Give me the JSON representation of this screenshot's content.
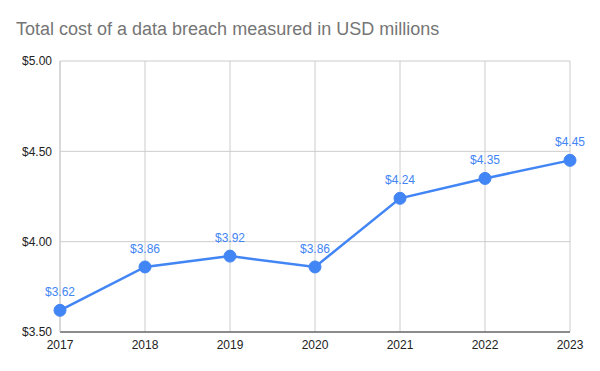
{
  "chart_data": {
    "type": "line",
    "title": "Total cost of a data breach measured in USD millions",
    "categories": [
      "2017",
      "2018",
      "2019",
      "2020",
      "2021",
      "2022",
      "2023"
    ],
    "values": [
      3.62,
      3.86,
      3.92,
      3.86,
      4.24,
      4.35,
      4.45
    ],
    "value_labels": [
      "$3.62",
      "$3.86",
      "$3.92",
      "$3.86",
      "$4.24",
      "$4.35",
      "$4.45"
    ],
    "color": "#4285f4",
    "ylim": [
      3.5,
      5.0
    ],
    "yticks": [
      {
        "value": 3.5,
        "label": "$3.50"
      },
      {
        "value": 4.0,
        "label": "$4.00"
      },
      {
        "value": 4.5,
        "label": "$4.50"
      },
      {
        "value": 5.0,
        "label": "$5.00"
      }
    ],
    "grid": true,
    "data_labels": true,
    "marker": "circle"
  }
}
